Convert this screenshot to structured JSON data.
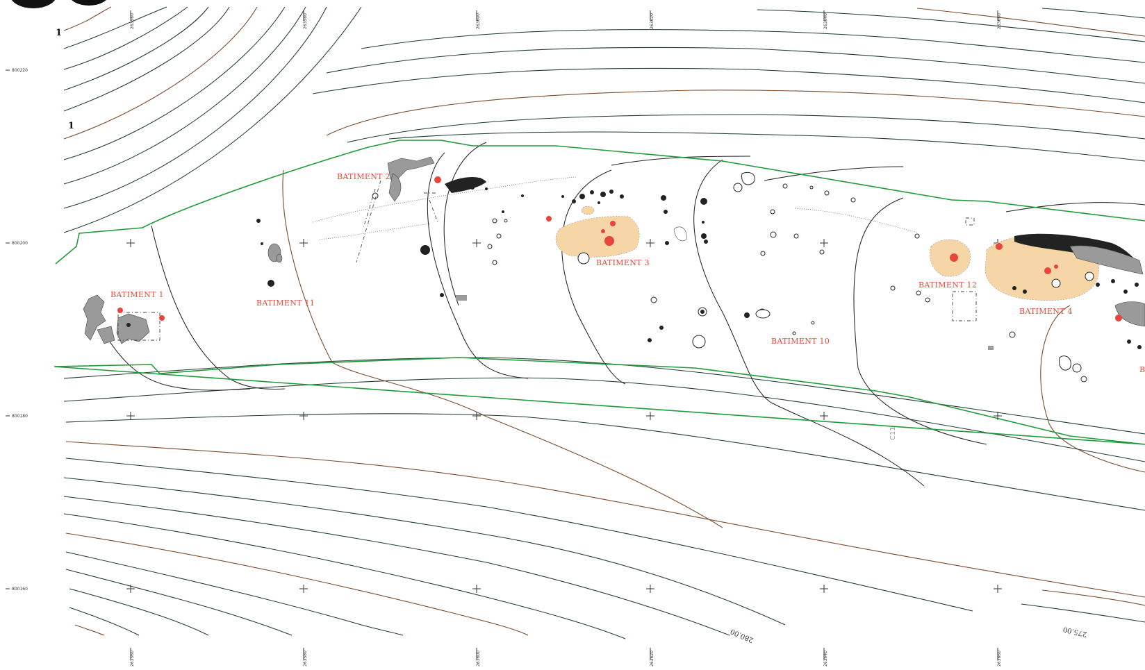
{
  "map": {
    "sheet_numbers": [
      "1",
      "1"
    ],
    "buildings": [
      {
        "id": "batiment-1",
        "label": "BATIMENT 1"
      },
      {
        "id": "batiment-2",
        "label": "BATIMENT 2"
      },
      {
        "id": "batiment-3",
        "label": "BATIMENT 3"
      },
      {
        "id": "batiment-4",
        "label": "BATIMENT 4"
      },
      {
        "id": "batiment-10",
        "label": "BATIMENT 10"
      },
      {
        "id": "batiment-11",
        "label": "BATIMENT 11"
      },
      {
        "id": "batiment-12",
        "label": "BATIMENT 12"
      },
      {
        "id": "batiment-partial",
        "label": "B"
      }
    ],
    "grid": {
      "easting_labels": [
        "263560",
        "263580",
        "263600",
        "263620",
        "263640",
        "263660"
      ],
      "northing_labels": [
        "800220",
        "800200",
        "800180",
        "800160"
      ]
    },
    "contour_labels": [
      "280.00",
      "275.00"
    ],
    "annotation": "C11",
    "colors": {
      "boundary": "#1f9a3a",
      "contour": "#1d3a2c",
      "major_contour": "#7a4a2a",
      "building_label": "#e8463a",
      "occupation_area": "#f6d6a6",
      "hearth": "#e8463a"
    }
  }
}
